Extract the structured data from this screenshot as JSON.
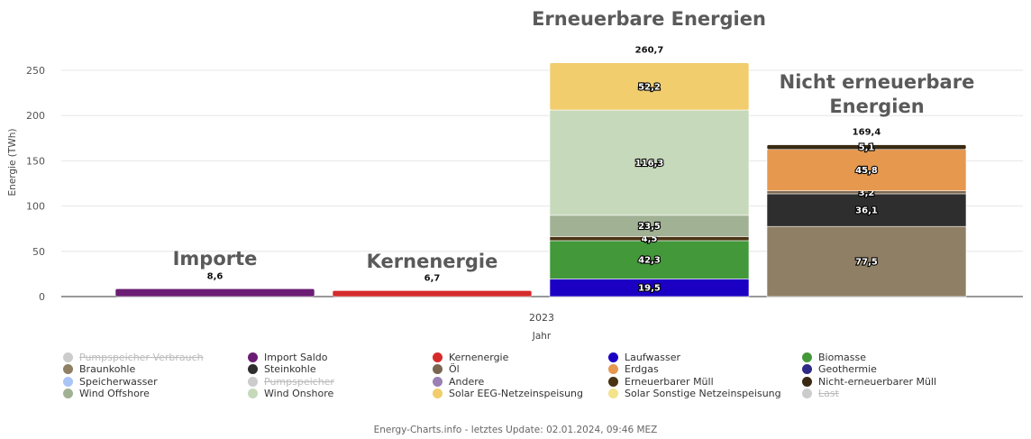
{
  "chart_data": {
    "type": "bar",
    "stacked": true,
    "ylabel": "Energie (TWh)",
    "xlabel": "Jahr",
    "x_tick": "2023",
    "ylim": [
      0,
      260
    ],
    "yticks": [
      0,
      50,
      100,
      150,
      200,
      250
    ],
    "grid": true,
    "legend_position": "bottom",
    "groups": [
      {
        "label": "Importe",
        "total_label": "8,6",
        "segments": [
          {
            "series": "Import Saldo",
            "value": 8.6,
            "color": "#6b1d73"
          }
        ]
      },
      {
        "label": "Kernenergie",
        "total_label": "6,7",
        "segments": [
          {
            "series": "Kernenergie",
            "value": 6.7,
            "color": "#d62b2b"
          }
        ]
      },
      {
        "label": "Erneuerbare Energien",
        "total_label": "260,7",
        "segments": [
          {
            "series": "Laufwasser",
            "value": 19.5,
            "label": "19,5",
            "color": "#1b00c4"
          },
          {
            "series": "Biomasse",
            "value": 42.3,
            "label": "42,3",
            "color": "#43983a"
          },
          {
            "series": "Erneuerbarer Müll",
            "value": 4.5,
            "label": "4,5",
            "color": "#4a3414"
          },
          {
            "series": "Wind Offshore",
            "value": 23.5,
            "label": "23,5",
            "color": "#a1b193"
          },
          {
            "series": "Wind Onshore",
            "value": 116.3,
            "label": "116,3",
            "color": "#c7d9bb"
          },
          {
            "series": "Solar EEG-Netzeinspeisung",
            "value": 52.2,
            "label": "52,2",
            "color": "#f1cd6e"
          }
        ]
      },
      {
        "label": "Nicht erneuerbare Energien",
        "total_label": "169,4",
        "segments": [
          {
            "series": "Braunkohle",
            "value": 77.5,
            "label": "77,5",
            "color": "#8f7f65"
          },
          {
            "series": "Steinkohle",
            "value": 36.1,
            "label": "36,1",
            "color": "#2e2e2e"
          },
          {
            "series": "Öl",
            "value": 3.2,
            "label": "3,2",
            "color": "#7a6650"
          },
          {
            "series": "Erdgas",
            "value": 45.8,
            "label": "45,8",
            "color": "#e6984f"
          },
          {
            "series": "Nicht-erneuerbarer Müll",
            "value": 5.1,
            "label": "5,1",
            "color": "#3a2a12"
          }
        ]
      }
    ],
    "legend": [
      {
        "name": "Pumpspeicher Verbrauch",
        "color": "#cccccc",
        "hidden": true
      },
      {
        "name": "Import Saldo",
        "color": "#6b1d73",
        "hidden": false
      },
      {
        "name": "Kernenergie",
        "color": "#d62b2b",
        "hidden": false
      },
      {
        "name": "Laufwasser",
        "color": "#1b00c4",
        "hidden": false
      },
      {
        "name": "Biomasse",
        "color": "#43983a",
        "hidden": false
      },
      {
        "name": "Braunkohle",
        "color": "#8f7f65",
        "hidden": false
      },
      {
        "name": "Steinkohle",
        "color": "#2e2e2e",
        "hidden": false
      },
      {
        "name": "Öl",
        "color": "#7a6650",
        "hidden": false
      },
      {
        "name": "Erdgas",
        "color": "#e6984f",
        "hidden": false
      },
      {
        "name": "Geothermie",
        "color": "#2e2a85",
        "hidden": false
      },
      {
        "name": "Speicherwasser",
        "color": "#aac4f5",
        "hidden": false
      },
      {
        "name": "Pumpspeicher",
        "color": "#cccccc",
        "hidden": true
      },
      {
        "name": "Andere",
        "color": "#9a80b5",
        "hidden": false
      },
      {
        "name": "Erneuerbarer Müll",
        "color": "#4a3414",
        "hidden": false
      },
      {
        "name": "Nicht-erneuerbarer Müll",
        "color": "#3a2a12",
        "hidden": false
      },
      {
        "name": "Wind Offshore",
        "color": "#a1b193",
        "hidden": false
      },
      {
        "name": "Wind Onshore",
        "color": "#c7d9bb",
        "hidden": false
      },
      {
        "name": "Solar EEG-Netzeinspeisung",
        "color": "#f1cd6e",
        "hidden": false
      },
      {
        "name": "Solar Sonstige Netzeinspeisung",
        "color": "#f3e38a",
        "hidden": false
      },
      {
        "name": "Last",
        "color": "#cccccc",
        "hidden": true
      }
    ]
  },
  "footer": "Energy-Charts.info - letztes Update: 02.01.2024, 09:46 MEZ"
}
